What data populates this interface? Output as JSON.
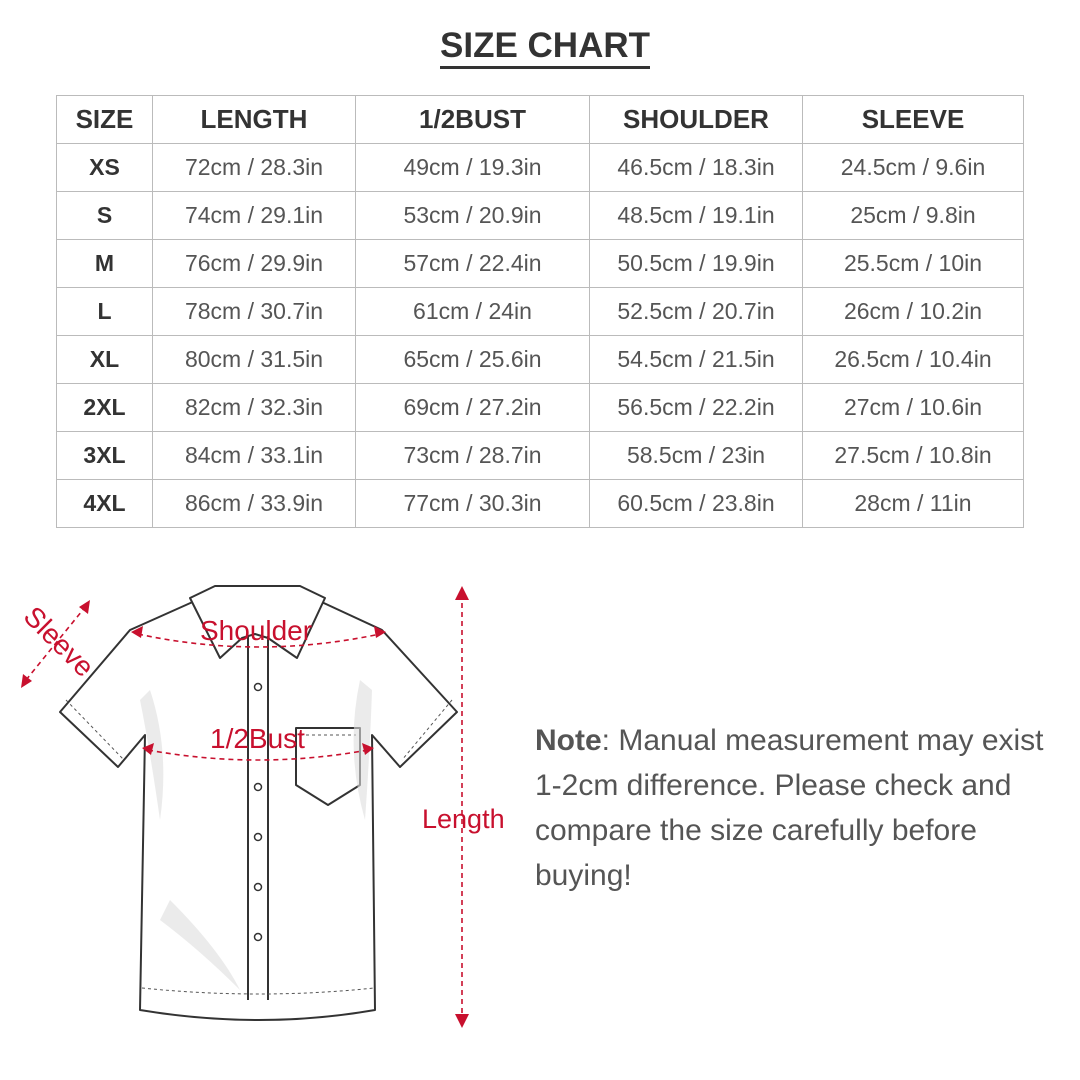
{
  "title": "SIZE CHART",
  "table": {
    "headers": [
      "SIZE",
      "LENGTH",
      "1/2BUST",
      "SHOULDER",
      "SLEEVE"
    ],
    "rows": [
      [
        "XS",
        "72cm / 28.3in",
        "49cm / 19.3in",
        "46.5cm / 18.3in",
        "24.5cm / 9.6in"
      ],
      [
        "S",
        "74cm / 29.1in",
        "53cm / 20.9in",
        "48.5cm / 19.1in",
        "25cm / 9.8in"
      ],
      [
        "M",
        "76cm / 29.9in",
        "57cm / 22.4in",
        "50.5cm / 19.9in",
        "25.5cm / 10in"
      ],
      [
        "L",
        "78cm / 30.7in",
        "61cm / 24in",
        "52.5cm / 20.7in",
        "26cm / 10.2in"
      ],
      [
        "XL",
        "80cm / 31.5in",
        "65cm / 25.6in",
        "54.5cm / 21.5in",
        "26.5cm / 10.4in"
      ],
      [
        "2XL",
        "82cm / 32.3in",
        "69cm / 27.2in",
        "56.5cm / 22.2in",
        "27cm / 10.6in"
      ],
      [
        "3XL",
        "84cm / 33.1in",
        "73cm / 28.7in",
        "58.5cm / 23in",
        "27.5cm / 10.8in"
      ],
      [
        "4XL",
        "86cm / 33.9in",
        "77cm / 30.3in",
        "60.5cm / 23.8in",
        "28cm / 11in"
      ]
    ]
  },
  "diagram": {
    "labels": {
      "sleeve": "Sleeve",
      "shoulder": "Shoulder",
      "bust": "1/2Bust",
      "length": "Length"
    },
    "accent_color": "#c8102e"
  },
  "note": {
    "label": "Note",
    "text": ": Manual measurement may exist 1-2cm difference. Please check and compare the size carefully before buying!"
  }
}
